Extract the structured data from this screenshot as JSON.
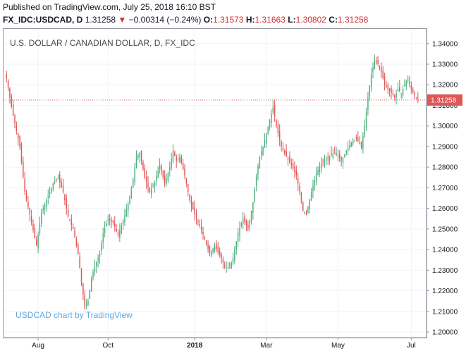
{
  "header": {
    "published": "Published on TradingView.com, July 25, 2018 16:10 BST",
    "symbol": "FX_IDC:USDCAD, D",
    "last": "1.31258",
    "change_arrow": "▼",
    "change": "−0.00314 (−0.24%)",
    "o_label": "O:",
    "o": "1.31573",
    "h_label": "H:",
    "h": "1.31663",
    "l_label": "L:",
    "l": "1.30802",
    "c_label": "C:",
    "c": "1.31258"
  },
  "chart_title": "U.S. DOLLAR / CANADIAN DOLLAR, D, FX_IDC",
  "branding": "USDCAD chart by TradingView",
  "colors": {
    "up": "#4fae7e",
    "down": "#e05656",
    "price_line": "#e05656",
    "badge": "#e05656"
  },
  "chart_data": {
    "type": "candlestick",
    "title": "U.S. DOLLAR / CANADIAN DOLLAR, D, FX_IDC",
    "ylim": [
      1.2,
      1.343
    ],
    "y_ticks": [
      "1.20000",
      "1.21000",
      "1.22000",
      "1.23000",
      "1.24000",
      "1.25000",
      "1.26000",
      "1.27000",
      "1.28000",
      "1.29000",
      "1.30000",
      "1.31000",
      "1.32000",
      "1.33000",
      "1.34000"
    ],
    "x_ticks": [
      {
        "label": "Aug",
        "index": 19,
        "bold": false
      },
      {
        "label": "Oct",
        "index": 61,
        "bold": false
      },
      {
        "label": "2018",
        "index": 113,
        "bold": true
      },
      {
        "label": "Mar",
        "index": 156,
        "bold": false
      },
      {
        "label": "May",
        "index": 199,
        "bold": false
      },
      {
        "label": "Jul",
        "index": 243,
        "bold": false
      }
    ],
    "current_price": "1.31258",
    "anchors": [
      [
        0,
        1.323
      ],
      [
        4,
        1.305
      ],
      [
        8,
        1.29
      ],
      [
        11,
        1.268
      ],
      [
        14,
        1.257
      ],
      [
        18,
        1.242
      ],
      [
        21,
        1.258
      ],
      [
        25,
        1.266
      ],
      [
        28,
        1.272
      ],
      [
        31,
        1.275
      ],
      [
        34,
        1.268
      ],
      [
        37,
        1.256
      ],
      [
        40,
        1.25
      ],
      [
        43,
        1.238
      ],
      [
        45,
        1.224
      ],
      [
        47,
        1.212
      ],
      [
        49,
        1.215
      ],
      [
        51,
        1.226
      ],
      [
        53,
        1.232
      ],
      [
        56,
        1.238
      ],
      [
        58,
        1.248
      ],
      [
        61,
        1.255
      ],
      [
        64,
        1.253
      ],
      [
        67,
        1.247
      ],
      [
        70,
        1.254
      ],
      [
        73,
        1.262
      ],
      [
        76,
        1.274
      ],
      [
        78,
        1.285
      ],
      [
        80,
        1.287
      ],
      [
        83,
        1.275
      ],
      [
        86,
        1.268
      ],
      [
        89,
        1.273
      ],
      [
        92,
        1.281
      ],
      [
        95,
        1.272
      ],
      [
        98,
        1.28
      ],
      [
        100,
        1.288
      ],
      [
        102,
        1.283
      ],
      [
        104,
        1.285
      ],
      [
        107,
        1.276
      ],
      [
        110,
        1.264
      ],
      [
        113,
        1.257
      ],
      [
        116,
        1.252
      ],
      [
        119,
        1.245
      ],
      [
        122,
        1.238
      ],
      [
        125,
        1.242
      ],
      [
        128,
        1.237
      ],
      [
        131,
        1.232
      ],
      [
        134,
        1.231
      ],
      [
        136,
        1.236
      ],
      [
        139,
        1.248
      ],
      [
        142,
        1.255
      ],
      [
        145,
        1.25
      ],
      [
        148,
        1.263
      ],
      [
        150,
        1.276
      ],
      [
        152,
        1.285
      ],
      [
        154,
        1.29
      ],
      [
        156,
        1.296
      ],
      [
        158,
        1.303
      ],
      [
        160,
        1.309
      ],
      [
        162,
        1.3
      ],
      [
        165,
        1.29
      ],
      [
        168,
        1.285
      ],
      [
        171,
        1.281
      ],
      [
        174,
        1.276
      ],
      [
        176,
        1.268
      ],
      [
        178,
        1.259
      ],
      [
        180,
        1.257
      ],
      [
        183,
        1.268
      ],
      [
        186,
        1.277
      ],
      [
        189,
        1.282
      ],
      [
        192,
        1.284
      ],
      [
        195,
        1.286
      ],
      [
        198,
        1.287
      ],
      [
        201,
        1.283
      ],
      [
        204,
        1.288
      ],
      [
        207,
        1.292
      ],
      [
        210,
        1.294
      ],
      [
        213,
        1.29
      ],
      [
        215,
        1.3
      ],
      [
        217,
        1.314
      ],
      [
        219,
        1.325
      ],
      [
        221,
        1.332
      ],
      [
        223,
        1.33
      ],
      [
        225,
        1.326
      ],
      [
        227,
        1.32
      ],
      [
        229,
        1.318
      ],
      [
        231,
        1.316
      ],
      [
        233,
        1.314
      ],
      [
        235,
        1.318
      ],
      [
        237,
        1.316
      ],
      [
        239,
        1.32
      ],
      [
        241,
        1.323
      ],
      [
        243,
        1.318
      ],
      [
        245,
        1.315
      ],
      [
        247,
        1.3126
      ]
    ]
  }
}
